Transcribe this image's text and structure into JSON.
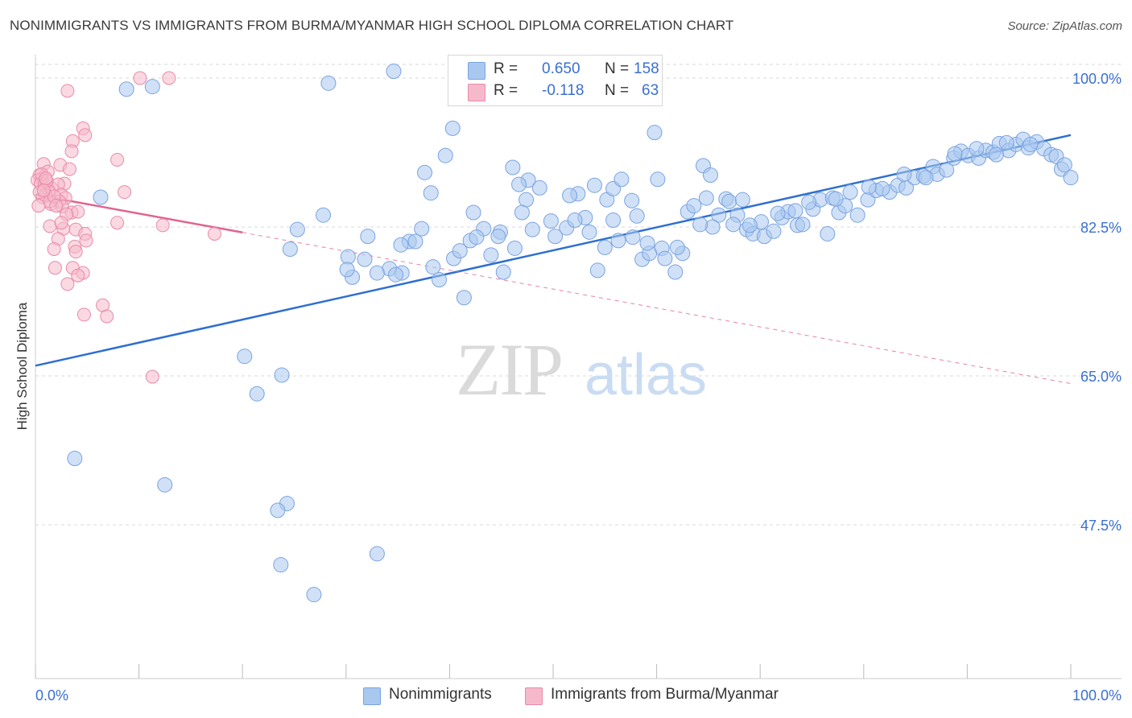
{
  "title": "NONIMMIGRANTS VS IMMIGRANTS FROM BURMA/MYANMAR HIGH SCHOOL DIPLOMA CORRELATION CHART",
  "source": "Source: ZipAtlas.com",
  "watermark": {
    "zip": "ZIP",
    "atlas": "atlas"
  },
  "legend": {
    "r_label": "R =",
    "n_label": "N =",
    "rows": [
      {
        "r": "0.650",
        "n": "158"
      },
      {
        "r": "-0.118",
        "n": "63"
      }
    ]
  },
  "colors": {
    "blue_fill": "#a9c8f0",
    "blue_stroke": "#7aa3df",
    "blue_line": "#2e6fcf",
    "pink_fill": "#f6b9cb",
    "pink_stroke": "#e98aa8",
    "pink_line": "#e0648e",
    "tick_label": "#3a6fd1",
    "grid": "#d9d9d9"
  },
  "chart_data": {
    "type": "scatter",
    "title": "NONIMMIGRANTS VS IMMIGRANTS FROM BURMA/MYANMAR HIGH SCHOOL DIPLOMA CORRELATION CHART",
    "xlabel": "",
    "ylabel": "High School Diploma",
    "xlim": [
      0,
      100
    ],
    "ylim": [
      32.5,
      102
    ],
    "x_tick_labels": [
      "0.0%",
      "100.0%"
    ],
    "y_ticks": [
      47.5,
      65.0,
      82.5,
      100.0
    ],
    "y_tick_labels": [
      "47.5%",
      "65.0%",
      "82.5%",
      "100.0%"
    ],
    "grid": true,
    "legend_position": "top-center",
    "series": [
      {
        "name": "Nonimmigrants",
        "color": "#a9c8f0",
        "trend": {
          "x": [
            0,
            100
          ],
          "y": [
            66.2,
            93.3
          ]
        },
        "points": [
          [
            34.6,
            100.8
          ],
          [
            47.7,
            100.0
          ],
          [
            28.3,
            99.4
          ],
          [
            11.3,
            99.0
          ],
          [
            8.8,
            98.7
          ],
          [
            40.3,
            94.1
          ],
          [
            39.6,
            90.9
          ],
          [
            37.6,
            88.9
          ],
          [
            46.1,
            89.5
          ],
          [
            59.8,
            93.6
          ],
          [
            6.3,
            86.0
          ],
          [
            3.8,
            55.3
          ],
          [
            12.5,
            52.2
          ],
          [
            24.3,
            50.0
          ],
          [
            23.4,
            49.2
          ],
          [
            33.0,
            44.1
          ],
          [
            23.7,
            42.8
          ],
          [
            26.9,
            39.3
          ],
          [
            21.4,
            62.9
          ],
          [
            20.2,
            67.3
          ],
          [
            23.8,
            65.1
          ],
          [
            25.3,
            82.2
          ],
          [
            24.6,
            79.9
          ],
          [
            27.8,
            83.9
          ],
          [
            30.2,
            79.0
          ],
          [
            34.2,
            77.6
          ],
          [
            33.0,
            77.1
          ],
          [
            35.4,
            77.1
          ],
          [
            31.8,
            78.7
          ],
          [
            32.1,
            81.4
          ],
          [
            36.1,
            80.8
          ],
          [
            35.3,
            80.4
          ],
          [
            39.0,
            76.3
          ],
          [
            40.4,
            78.8
          ],
          [
            42.0,
            80.9
          ],
          [
            44.0,
            79.2
          ],
          [
            41.4,
            74.2
          ],
          [
            45.2,
            77.2
          ],
          [
            44.9,
            81.9
          ],
          [
            47.4,
            85.7
          ],
          [
            49.8,
            83.2
          ],
          [
            47.6,
            88.0
          ],
          [
            48.7,
            87.1
          ],
          [
            47.0,
            84.2
          ],
          [
            51.3,
            82.4
          ],
          [
            53.1,
            83.6
          ],
          [
            52.4,
            86.4
          ],
          [
            54.0,
            87.4
          ],
          [
            55.2,
            85.7
          ],
          [
            55.8,
            87.0
          ],
          [
            56.6,
            88.1
          ],
          [
            57.6,
            85.6
          ],
          [
            58.1,
            83.8
          ],
          [
            56.3,
            80.9
          ],
          [
            58.6,
            78.7
          ],
          [
            60.5,
            80.0
          ],
          [
            61.8,
            77.2
          ],
          [
            62.5,
            79.4
          ],
          [
            63.0,
            84.3
          ],
          [
            63.6,
            85.0
          ],
          [
            60.1,
            88.1
          ],
          [
            64.5,
            89.7
          ],
          [
            65.2,
            88.6
          ],
          [
            66.7,
            85.8
          ],
          [
            67.0,
            85.5
          ],
          [
            67.8,
            83.9
          ],
          [
            68.3,
            85.7
          ],
          [
            66.0,
            83.9
          ],
          [
            68.7,
            82.2
          ],
          [
            69.3,
            81.7
          ],
          [
            70.4,
            81.4
          ],
          [
            71.3,
            82.0
          ],
          [
            72.1,
            83.6
          ],
          [
            72.7,
            84.3
          ],
          [
            73.6,
            82.7
          ],
          [
            74.1,
            82.8
          ],
          [
            75.1,
            84.6
          ],
          [
            75.8,
            85.7
          ],
          [
            77.0,
            85.9
          ],
          [
            76.5,
            81.7
          ],
          [
            77.6,
            84.2
          ],
          [
            78.2,
            85.0
          ],
          [
            79.4,
            83.9
          ],
          [
            80.4,
            85.7
          ],
          [
            81.2,
            86.8
          ],
          [
            82.5,
            86.6
          ],
          [
            83.3,
            87.4
          ],
          [
            84.1,
            87.1
          ],
          [
            84.9,
            88.3
          ],
          [
            85.8,
            88.5
          ],
          [
            86.7,
            89.6
          ],
          [
            87.1,
            88.7
          ],
          [
            88.0,
            89.2
          ],
          [
            88.7,
            90.6
          ],
          [
            89.4,
            91.4
          ],
          [
            90.1,
            90.9
          ],
          [
            91.1,
            90.6
          ],
          [
            91.8,
            91.5
          ],
          [
            92.5,
            91.3
          ],
          [
            93.1,
            92.3
          ],
          [
            94.0,
            91.5
          ],
          [
            94.7,
            92.2
          ],
          [
            95.4,
            92.8
          ],
          [
            95.9,
            91.8
          ],
          [
            96.7,
            92.5
          ],
          [
            97.4,
            91.7
          ],
          [
            98.1,
            91.0
          ],
          [
            98.6,
            90.8
          ],
          [
            99.1,
            89.3
          ],
          [
            100.0,
            88.3
          ],
          [
            99.4,
            89.8
          ],
          [
            96.1,
            92.2
          ],
          [
            93.8,
            92.4
          ],
          [
            92.8,
            91.0
          ],
          [
            90.9,
            91.7
          ],
          [
            88.8,
            91.1
          ],
          [
            86.0,
            88.3
          ],
          [
            83.9,
            88.7
          ],
          [
            81.8,
            87.0
          ],
          [
            80.5,
            87.2
          ],
          [
            78.7,
            86.6
          ],
          [
            77.3,
            85.8
          ],
          [
            74.7,
            85.4
          ],
          [
            73.4,
            84.4
          ],
          [
            71.7,
            84.1
          ],
          [
            70.1,
            83.1
          ],
          [
            69.0,
            82.7
          ],
          [
            67.4,
            82.8
          ],
          [
            65.4,
            82.5
          ],
          [
            64.2,
            82.8
          ],
          [
            62.0,
            80.1
          ],
          [
            60.8,
            78.8
          ],
          [
            59.3,
            79.4
          ],
          [
            57.7,
            81.3
          ],
          [
            55.0,
            80.1
          ],
          [
            54.3,
            77.4
          ],
          [
            53.5,
            81.9
          ],
          [
            52.1,
            83.3
          ],
          [
            50.2,
            81.4
          ],
          [
            48.0,
            82.2
          ],
          [
            46.3,
            80.0
          ],
          [
            44.7,
            81.4
          ],
          [
            43.3,
            82.3
          ],
          [
            42.6,
            81.3
          ],
          [
            41.0,
            79.7
          ],
          [
            38.4,
            77.8
          ],
          [
            37.3,
            82.3
          ],
          [
            36.7,
            80.8
          ],
          [
            34.8,
            76.9
          ],
          [
            30.6,
            76.6
          ],
          [
            30.1,
            77.5
          ],
          [
            38.2,
            86.5
          ],
          [
            42.3,
            84.2
          ],
          [
            46.7,
            87.5
          ],
          [
            51.6,
            86.2
          ],
          [
            55.8,
            83.3
          ],
          [
            59.1,
            80.6
          ],
          [
            64.8,
            85.9
          ]
        ]
      },
      {
        "name": "Immigrants from Burma/Myanmar",
        "color": "#f6b9cb",
        "trend": {
          "x": [
            0,
            100
          ],
          "y": [
            86.3,
            64.1
          ]
        },
        "points": [
          [
            10.1,
            100.0
          ],
          [
            12.9,
            100.0
          ],
          [
            3.1,
            98.5
          ],
          [
            4.6,
            94.1
          ],
          [
            4.8,
            93.3
          ],
          [
            3.6,
            92.6
          ],
          [
            3.5,
            91.4
          ],
          [
            7.9,
            90.4
          ],
          [
            0.8,
            89.9
          ],
          [
            2.4,
            89.8
          ],
          [
            3.3,
            89.3
          ],
          [
            1.2,
            89.0
          ],
          [
            0.4,
            88.6
          ],
          [
            0.6,
            88.2
          ],
          [
            0.2,
            88.0
          ],
          [
            0.5,
            87.6
          ],
          [
            0.9,
            87.5
          ],
          [
            1.6,
            87.0
          ],
          [
            2.8,
            87.6
          ],
          [
            2.2,
            87.5
          ],
          [
            8.6,
            86.6
          ],
          [
            1.3,
            86.7
          ],
          [
            1.0,
            86.2
          ],
          [
            0.7,
            86.0
          ],
          [
            2.5,
            86.3
          ],
          [
            2.9,
            85.9
          ],
          [
            2.3,
            85.5
          ],
          [
            1.5,
            85.2
          ],
          [
            0.3,
            85.0
          ],
          [
            1.4,
            85.5
          ],
          [
            3.5,
            84.2
          ],
          [
            4.1,
            84.3
          ],
          [
            2.6,
            84.9
          ],
          [
            7.9,
            83.0
          ],
          [
            12.3,
            82.7
          ],
          [
            1.4,
            82.6
          ],
          [
            2.7,
            82.3
          ],
          [
            3.9,
            82.2
          ],
          [
            4.8,
            81.7
          ],
          [
            17.3,
            81.7
          ],
          [
            2.2,
            81.1
          ],
          [
            1.8,
            79.9
          ],
          [
            3.8,
            80.2
          ],
          [
            3.9,
            79.6
          ],
          [
            4.9,
            80.9
          ],
          [
            1.9,
            77.7
          ],
          [
            3.6,
            77.7
          ],
          [
            4.6,
            77.1
          ],
          [
            4.1,
            76.8
          ],
          [
            3.1,
            75.8
          ],
          [
            6.5,
            73.3
          ],
          [
            6.9,
            72.0
          ],
          [
            4.7,
            72.2
          ],
          [
            11.3,
            64.9
          ],
          [
            0.6,
            88.7
          ],
          [
            1.1,
            87.9
          ],
          [
            0.4,
            86.6
          ],
          [
            1.8,
            86.1
          ],
          [
            2.0,
            85.0
          ],
          [
            3.0,
            84.0
          ],
          [
            2.5,
            83.0
          ],
          [
            1.0,
            88.2
          ],
          [
            0.8,
            86.8
          ]
        ]
      }
    ]
  }
}
